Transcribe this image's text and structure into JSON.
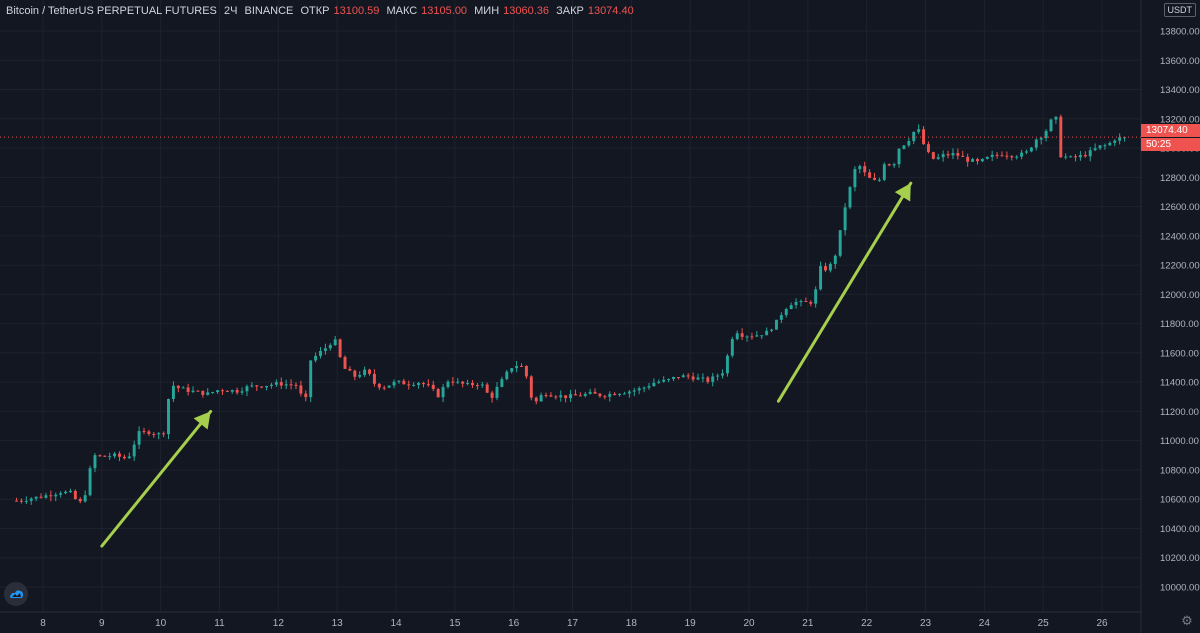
{
  "legend": {
    "symbol": "Bitcoin / TetherUS PERPETUAL FUTURES",
    "interval": "2Ч",
    "exchange": "BINANCE",
    "open_label": "ОТКР",
    "open_value": "13100.59",
    "high_label": "МАКС",
    "high_value": "13105.00",
    "low_label": "МИН",
    "low_value": "13060.36",
    "close_label": "ЗАКР",
    "close_value": "13074.40"
  },
  "currency_badge": "USDT",
  "last_price_label": "13074.40",
  "countdown_label": "50:25",
  "colors": {
    "background": "#131722",
    "up": "#26a69a",
    "down": "#ef5350",
    "grid": "#1e222d",
    "arrow": "#a5cf4d",
    "axis_text": "#b2b5be"
  },
  "icons": {
    "logo": "tradingview-logo-icon",
    "settings": "gear-icon"
  },
  "chart_data": {
    "type": "candlestick",
    "title": "",
    "ylim": [
      9900,
      14060
    ],
    "y_ticks": [
      "10000.00",
      "10200.00",
      "10400.00",
      "10600.00",
      "10800.00",
      "11000.00",
      "11200.00",
      "11400.00",
      "11600.00",
      "11800.00",
      "12000.00",
      "12200.00",
      "12400.00",
      "12600.00",
      "12800.00",
      "13000.00",
      "13200.00",
      "13400.00",
      "13600.00",
      "13800.00"
    ],
    "x_ticks": [
      "8",
      "9",
      "10",
      "11",
      "12",
      "13",
      "14",
      "15",
      "16",
      "17",
      "18",
      "19",
      "20",
      "21",
      "22",
      "23",
      "24",
      "25",
      "26"
    ],
    "x_start_day": 7.55,
    "candle_interval_hours": 2,
    "close_path": [
      [
        7.55,
        10590
      ],
      [
        8.0,
        10620
      ],
      [
        8.3,
        10650
      ],
      [
        8.5,
        10640
      ],
      [
        8.6,
        10560
      ],
      [
        8.7,
        10610
      ],
      [
        8.75,
        10700
      ],
      [
        8.85,
        10900
      ],
      [
        9.0,
        10890
      ],
      [
        9.2,
        10900
      ],
      [
        9.4,
        10880
      ],
      [
        9.5,
        10910
      ],
      [
        9.6,
        11050
      ],
      [
        9.8,
        11060
      ],
      [
        10.0,
        11040
      ],
      [
        10.1,
        11080
      ],
      [
        10.15,
        11390
      ],
      [
        10.3,
        11360
      ],
      [
        10.5,
        11340
      ],
      [
        10.8,
        11320
      ],
      [
        11.0,
        11350
      ],
      [
        11.3,
        11340
      ],
      [
        11.5,
        11370
      ],
      [
        11.8,
        11380
      ],
      [
        12.0,
        11390
      ],
      [
        12.3,
        11380
      ],
      [
        12.45,
        11260
      ],
      [
        12.5,
        11330
      ],
      [
        12.55,
        11550
      ],
      [
        12.7,
        11600
      ],
      [
        12.85,
        11650
      ],
      [
        12.95,
        11700
      ],
      [
        13.1,
        11500
      ],
      [
        13.3,
        11440
      ],
      [
        13.5,
        11480
      ],
      [
        13.65,
        11380
      ],
      [
        13.8,
        11370
      ],
      [
        14.0,
        11400
      ],
      [
        14.2,
        11390
      ],
      [
        14.4,
        11400
      ],
      [
        14.6,
        11360
      ],
      [
        14.7,
        11300
      ],
      [
        14.8,
        11360
      ],
      [
        14.9,
        11420
      ],
      [
        15.0,
        11400
      ],
      [
        15.2,
        11380
      ],
      [
        15.4,
        11390
      ],
      [
        15.5,
        11370
      ],
      [
        15.6,
        11280
      ],
      [
        15.7,
        11350
      ],
      [
        15.9,
        11470
      ],
      [
        16.0,
        11520
      ],
      [
        16.1,
        11510
      ],
      [
        16.2,
        11500
      ],
      [
        16.25,
        11320
      ],
      [
        16.4,
        11260
      ],
      [
        16.5,
        11330
      ],
      [
        16.7,
        11310
      ],
      [
        16.9,
        11300
      ],
      [
        17.1,
        11310
      ],
      [
        17.3,
        11320
      ],
      [
        17.5,
        11310
      ],
      [
        17.8,
        11330
      ],
      [
        18.0,
        11340
      ],
      [
        18.2,
        11360
      ],
      [
        18.4,
        11400
      ],
      [
        18.6,
        11410
      ],
      [
        18.8,
        11440
      ],
      [
        18.95,
        11440
      ],
      [
        19.2,
        11420
      ],
      [
        19.3,
        11410
      ],
      [
        19.4,
        11430
      ],
      [
        19.55,
        11470
      ],
      [
        19.65,
        11600
      ],
      [
        19.75,
        11760
      ],
      [
        19.9,
        11720
      ],
      [
        20.1,
        11720
      ],
      [
        20.3,
        11740
      ],
      [
        20.45,
        11800
      ],
      [
        20.6,
        11900
      ],
      [
        20.75,
        11950
      ],
      [
        20.9,
        11940
      ],
      [
        21.1,
        11950
      ],
      [
        21.2,
        12180
      ],
      [
        21.35,
        12170
      ],
      [
        21.5,
        12300
      ],
      [
        21.6,
        12550
      ],
      [
        21.7,
        12700
      ],
      [
        21.8,
        12850
      ],
      [
        21.9,
        12880
      ],
      [
        22.0,
        12800
      ],
      [
        22.1,
        12780
      ],
      [
        22.2,
        12760
      ],
      [
        22.3,
        12900
      ],
      [
        22.45,
        12880
      ],
      [
        22.55,
        13000
      ],
      [
        22.7,
        13050
      ],
      [
        22.8,
        13110
      ],
      [
        22.9,
        13120
      ],
      [
        23.0,
        12980
      ],
      [
        23.15,
        12920
      ],
      [
        23.3,
        12950
      ],
      [
        23.5,
        12960
      ],
      [
        23.7,
        12920
      ],
      [
        23.9,
        12900
      ],
      [
        24.1,
        12940
      ],
      [
        24.3,
        12960
      ],
      [
        24.5,
        12950
      ],
      [
        24.7,
        12960
      ],
      [
        24.9,
        13070
      ],
      [
        25.0,
        13090
      ],
      [
        25.1,
        13150
      ],
      [
        25.2,
        13250
      ],
      [
        25.3,
        12950
      ],
      [
        25.45,
        12930
      ],
      [
        25.6,
        12940
      ],
      [
        25.75,
        12960
      ],
      [
        25.95,
        13010
      ],
      [
        26.1,
        13020
      ],
      [
        26.2,
        13060
      ],
      [
        26.4,
        13074.4
      ]
    ],
    "arrows": [
      {
        "from": {
          "day": 9.0,
          "price": 10280
        },
        "to": {
          "day": 10.85,
          "price": 11200
        }
      },
      {
        "from": {
          "day": 20.5,
          "price": 11270
        },
        "to": {
          "day": 22.75,
          "price": 12760
        }
      }
    ]
  }
}
